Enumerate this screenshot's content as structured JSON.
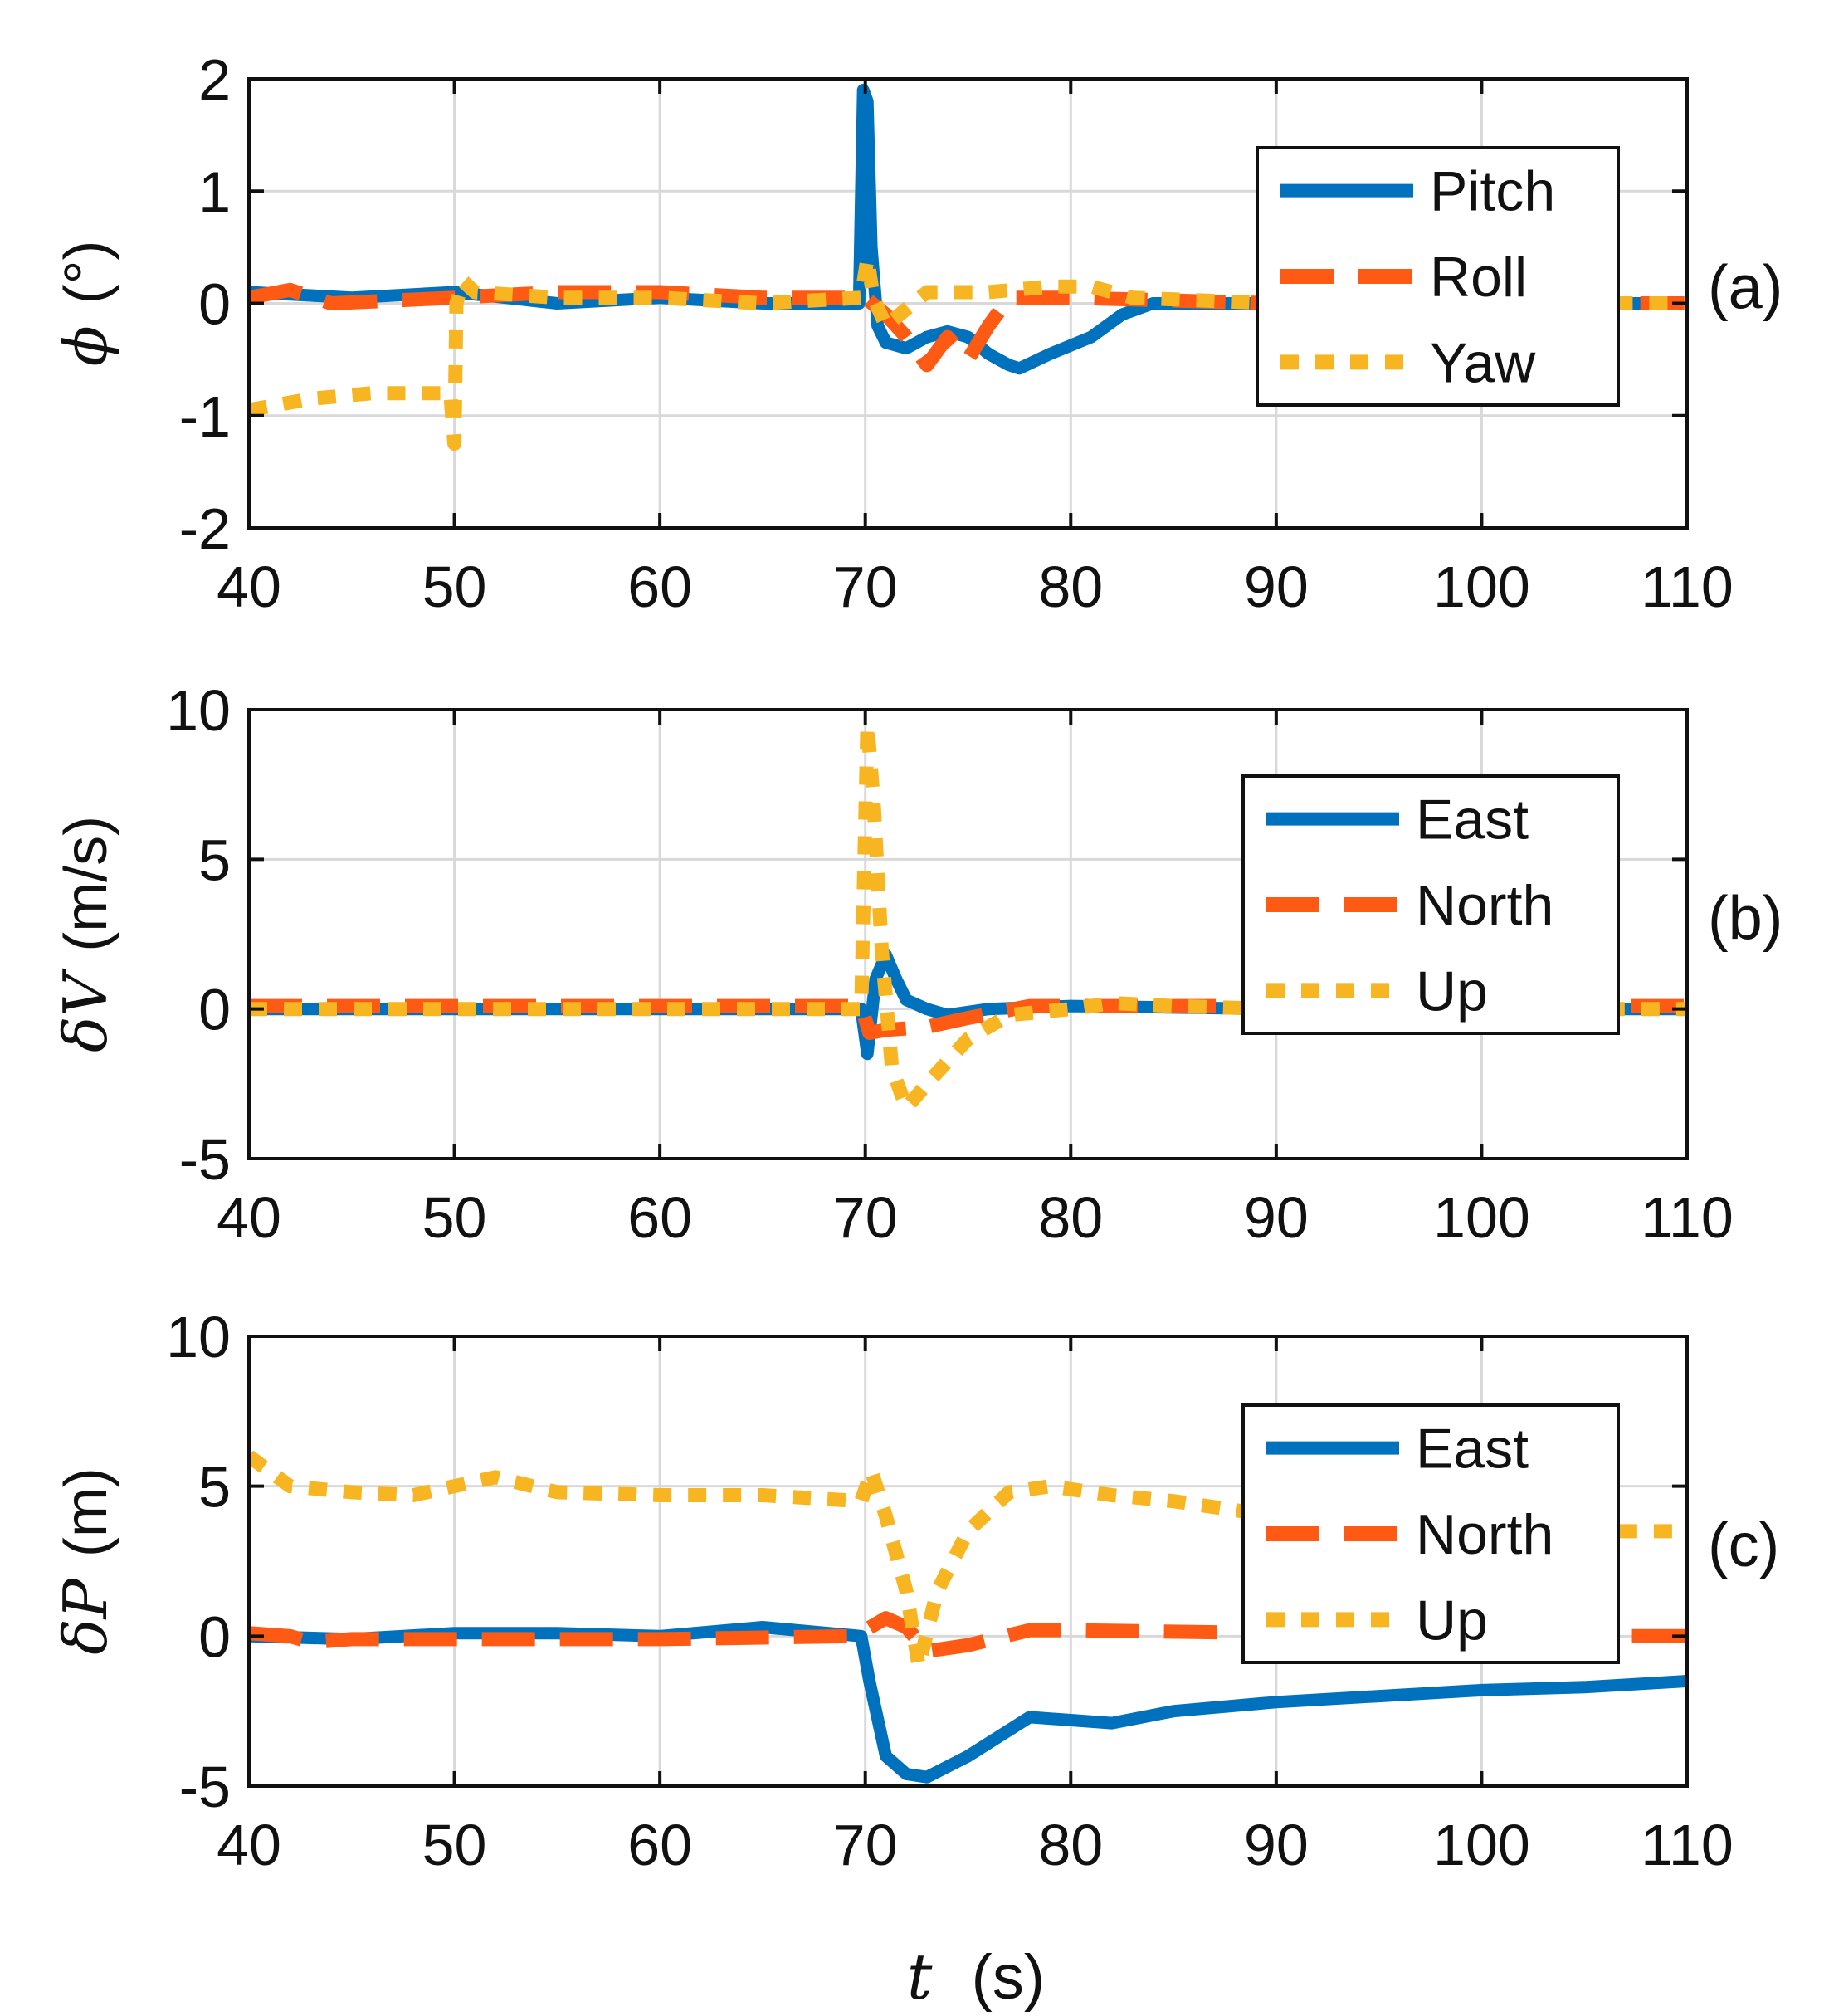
{
  "xlabel": {
    "symbol": "t",
    "unit": "(s)"
  },
  "colors": {
    "blue": "#0072BD",
    "orange": "#FF5A14",
    "yellow": "#F7B521",
    "grid": "#d9d9d9",
    "axis": "#111111"
  },
  "chart_data": [
    {
      "type": "line",
      "tag": "(a)",
      "ylabel_symbol": "ϕ",
      "ylabel_unit": "(°)",
      "xlim": [
        40,
        110
      ],
      "ylim": [
        -2,
        2
      ],
      "xticks": [
        40,
        50,
        60,
        70,
        80,
        90,
        100,
        110
      ],
      "yticks": [
        -2,
        -1,
        0,
        1,
        2
      ],
      "grid": true,
      "legend_position": "top-right",
      "series": [
        {
          "name": "Pitch",
          "style": "solid",
          "color": "#0072BD",
          "x": [
            40,
            45,
            50,
            55,
            60,
            65,
            69.7,
            69.9,
            70.1,
            70.3,
            70.6,
            71,
            72,
            73,
            74,
            75,
            76,
            77,
            77.5,
            79,
            81,
            82.5,
            84,
            90,
            100,
            110
          ],
          "y": [
            0.1,
            0.05,
            0.1,
            0.0,
            0.05,
            0.0,
            0.0,
            1.9,
            1.8,
            0.5,
            -0.2,
            -0.35,
            -0.4,
            -0.3,
            -0.25,
            -0.3,
            -0.45,
            -0.55,
            -0.58,
            -0.45,
            -0.3,
            -0.1,
            0.0,
            0.0,
            0.0,
            0.0
          ]
        },
        {
          "name": "Roll",
          "style": "dashed",
          "color": "#FF5A14",
          "x": [
            40,
            42,
            44,
            50,
            55,
            60,
            65,
            70,
            71,
            72,
            73,
            74,
            75,
            76,
            77,
            80,
            90,
            110
          ],
          "y": [
            0.05,
            0.12,
            0.0,
            0.05,
            0.1,
            0.1,
            0.05,
            0.05,
            -0.1,
            -0.3,
            -0.55,
            -0.3,
            -0.5,
            -0.2,
            0.05,
            0.05,
            0.0,
            0.0
          ]
        },
        {
          "name": "Yaw",
          "style": "dotted",
          "color": "#F7B521",
          "x": [
            40,
            43,
            46,
            49.8,
            50,
            50.1,
            50.4,
            51,
            55,
            60,
            65,
            69.8,
            70.1,
            70.4,
            71,
            73,
            76,
            79,
            81,
            83,
            90,
            110
          ],
          "y": [
            -0.95,
            -0.85,
            -0.8,
            -0.8,
            -1.25,
            0.0,
            0.2,
            0.1,
            0.05,
            0.05,
            0.0,
            0.05,
            0.4,
            0.05,
            -0.2,
            0.1,
            0.1,
            0.15,
            0.15,
            0.05,
            0.0,
            0.0
          ]
        }
      ]
    },
    {
      "type": "line",
      "tag": "(b)",
      "ylabel_symbol": "δV",
      "ylabel_unit": "(m/s)",
      "xlim": [
        40,
        110
      ],
      "ylim": [
        -5,
        10
      ],
      "xticks": [
        40,
        50,
        60,
        70,
        80,
        90,
        100,
        110
      ],
      "yticks": [
        -5,
        0,
        5,
        10
      ],
      "grid": true,
      "legend_position": "right",
      "series": [
        {
          "name": "East",
          "style": "solid",
          "color": "#0072BD",
          "x": [
            40,
            60,
            69.8,
            70.1,
            70.5,
            71,
            71.5,
            72,
            73,
            74,
            76,
            80,
            90,
            110
          ],
          "y": [
            0.0,
            0.0,
            0.0,
            -1.5,
            1.0,
            1.8,
            1.0,
            0.3,
            0.0,
            -0.2,
            0.0,
            0.1,
            0.0,
            0.0
          ]
        },
        {
          "name": "North",
          "style": "dashed",
          "color": "#FF5A14",
          "x": [
            40,
            60,
            69.8,
            70.2,
            71,
            73,
            75,
            78,
            80,
            110
          ],
          "y": [
            0.1,
            0.1,
            0.1,
            -0.8,
            -0.7,
            -0.6,
            -0.3,
            0.1,
            0.1,
            0.1
          ]
        },
        {
          "name": "Up",
          "style": "dotted",
          "color": "#F7B521",
          "x": [
            40,
            60,
            69.8,
            70.1,
            70.4,
            70.8,
            71.3,
            72,
            73,
            75,
            77,
            80,
            82,
            85,
            90,
            110
          ],
          "y": [
            0.0,
            0.0,
            0.0,
            9.5,
            7.0,
            2.0,
            -2.0,
            -3.3,
            -2.5,
            -1.0,
            -0.2,
            0.0,
            0.2,
            0.1,
            0.0,
            0.0
          ]
        }
      ]
    },
    {
      "type": "line",
      "tag": "(c)",
      "ylabel_symbol": "δP",
      "ylabel_unit": "(m)",
      "xlim": [
        40,
        110
      ],
      "ylim": [
        -5,
        10
      ],
      "xticks": [
        40,
        50,
        60,
        70,
        80,
        90,
        100,
        110
      ],
      "yticks": [
        -5,
        0,
        5,
        10
      ],
      "grid": true,
      "legend_position": "right",
      "series": [
        {
          "name": "East",
          "style": "solid",
          "color": "#0072BD",
          "x": [
            40,
            45,
            50,
            55,
            60,
            65,
            69.8,
            70.2,
            71,
            72,
            73,
            75,
            78,
            80,
            82,
            85,
            90,
            95,
            100,
            105,
            110
          ],
          "y": [
            0.0,
            -0.1,
            0.1,
            0.1,
            0.0,
            0.3,
            0.0,
            -1.5,
            -4.0,
            -4.6,
            -4.7,
            -4.0,
            -2.7,
            -2.8,
            -2.9,
            -2.5,
            -2.2,
            -2.0,
            -1.8,
            -1.7,
            -1.5
          ]
        },
        {
          "name": "North",
          "style": "dashed",
          "color": "#FF5A14",
          "x": [
            40,
            42,
            43,
            45,
            50,
            60,
            69.5,
            71,
            72,
            73,
            75,
            78,
            80,
            90,
            100,
            110
          ],
          "y": [
            0.1,
            0.0,
            -0.2,
            -0.1,
            -0.1,
            -0.1,
            0.0,
            0.6,
            0.3,
            -0.5,
            -0.3,
            0.2,
            0.2,
            0.1,
            0.0,
            0.0
          ]
        },
        {
          "name": "Up",
          "style": "dotted",
          "color": "#F7B521",
          "x": [
            40,
            42,
            45,
            48,
            52,
            55,
            60,
            65,
            69.8,
            70.3,
            71,
            72,
            72.6,
            73.5,
            75,
            77,
            79,
            82,
            85,
            90,
            95,
            100,
            105,
            110
          ],
          "y": [
            6.0,
            5.0,
            4.8,
            4.7,
            5.3,
            4.8,
            4.7,
            4.7,
            4.5,
            5.5,
            4.0,
            1.5,
            -1.0,
            1.5,
            3.5,
            4.8,
            5.0,
            4.7,
            4.5,
            4.0,
            3.8,
            3.6,
            3.5,
            3.5
          ]
        }
      ]
    }
  ]
}
